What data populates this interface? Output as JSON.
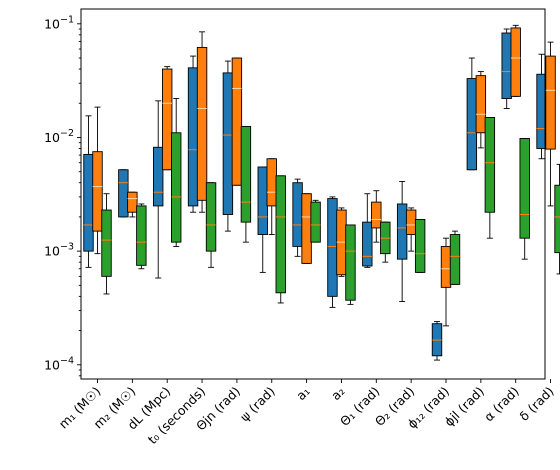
{
  "chart_data": {
    "type": "box",
    "y_scale": "log",
    "ylim": [
      7.5e-05,
      0.135
    ],
    "y_ticks": [
      {
        "value": 0.1,
        "base": "10",
        "exp": "−1"
      },
      {
        "value": 0.01,
        "base": "10",
        "exp": "−2"
      },
      {
        "value": 0.001,
        "base": "10",
        "exp": "−3"
      },
      {
        "value": 0.0001,
        "base": "10",
        "exp": "−4"
      }
    ],
    "categories": [
      {
        "label": "m₁ (M☉)"
      },
      {
        "label": "m₂ (M☉)"
      },
      {
        "label": "dL (Mpc)"
      },
      {
        "label": "t₀ (seconds)"
      },
      {
        "label": "Θjn (rad)"
      },
      {
        "label": "ψ (rad)"
      },
      {
        "label": "a₁"
      },
      {
        "label": "a₂"
      },
      {
        "label": "Θ₁ (rad)"
      },
      {
        "label": "Θ₂ (rad)"
      },
      {
        "label": "ϕ₁₂ (rad)"
      },
      {
        "label": "ϕjl (rad)"
      },
      {
        "label": "α (rad)"
      },
      {
        "label": "δ (rad)"
      }
    ],
    "series": [
      {
        "color": "#1f77b4",
        "boxes": [
          {
            "whislo": 0.00072,
            "q1": 0.001,
            "med": 0.0017,
            "q3": 0.0071,
            "whishi": 0.0155
          },
          {
            "whislo": 0.002,
            "q1": 0.002,
            "med": 0.004,
            "q3": 0.0052,
            "whishi": 0.0052
          },
          {
            "whislo": 0.00058,
            "q1": 0.0025,
            "med": 0.0033,
            "q3": 0.0082,
            "whishi": 0.021
          },
          {
            "whislo": 0.0022,
            "q1": 0.0025,
            "med": 0.0078,
            "q3": 0.041,
            "whishi": 0.052
          },
          {
            "whislo": 0.0015,
            "q1": 0.0021,
            "med": 0.0105,
            "q3": 0.037,
            "whishi": 0.047
          },
          {
            "whislo": 0.00065,
            "q1": 0.0014,
            "med": 0.002,
            "q3": 0.0055,
            "whishi": 0.0055
          },
          {
            "whislo": 0.0009,
            "q1": 0.0011,
            "med": 0.0017,
            "q3": 0.004,
            "whishi": 0.0043
          },
          {
            "whislo": 0.00032,
            "q1": 0.0004,
            "med": 0.0011,
            "q3": 0.0029,
            "whishi": 0.003
          },
          {
            "whislo": 0.00072,
            "q1": 0.00074,
            "med": 0.0009,
            "q3": 0.0018,
            "whishi": 0.0032
          },
          {
            "whislo": 0.00036,
            "q1": 0.00085,
            "med": 0.0016,
            "q3": 0.0026,
            "whishi": 0.0041
          },
          {
            "whislo": 0.00011,
            "q1": 0.00012,
            "med": 0.000165,
            "q3": 0.00023,
            "whishi": 0.00024
          },
          {
            "whislo": 0.0052,
            "q1": 0.0052,
            "med": 0.011,
            "q3": 0.033,
            "whishi": 0.05
          },
          {
            "whislo": 0.018,
            "q1": 0.022,
            "med": 0.038,
            "q3": 0.083,
            "whishi": 0.09
          },
          {
            "whislo": 0.0065,
            "q1": 0.008,
            "med": 0.012,
            "q3": 0.036,
            "whishi": 0.054
          }
        ]
      },
      {
        "color": "#ff7f0e",
        "boxes": [
          {
            "whislo": 0.00095,
            "q1": 0.0015,
            "med": 0.0037,
            "q3": 0.0075,
            "whishi": 0.0185
          },
          {
            "whislo": 0.002,
            "q1": 0.0022,
            "med": 0.0029,
            "q3": 0.0033,
            "whishi": 0.0033
          },
          {
            "whislo": 0.0052,
            "q1": 0.0052,
            "med": 0.02,
            "q3": 0.04,
            "whishi": 0.042
          },
          {
            "whislo": 0.0022,
            "q1": 0.0028,
            "med": 0.018,
            "q3": 0.062,
            "whishi": 0.085
          },
          {
            "whislo": 0.0038,
            "q1": 0.0038,
            "med": 0.027,
            "q3": 0.05,
            "whishi": 0.05
          },
          {
            "whislo": 0.0014,
            "q1": 0.0025,
            "med": 0.0033,
            "q3": 0.0065,
            "whishi": 0.0065
          },
          {
            "whislo": 0.00078,
            "q1": 0.00078,
            "med": 0.002,
            "q3": 0.0032,
            "whishi": 0.0032
          },
          {
            "whislo": 0.0006,
            "q1": 0.00062,
            "med": 0.0012,
            "q3": 0.0023,
            "whishi": 0.0024
          },
          {
            "whislo": 0.0012,
            "q1": 0.0016,
            "med": 0.0019,
            "q3": 0.0027,
            "whishi": 0.0034
          },
          {
            "whislo": 0.001,
            "q1": 0.0014,
            "med": 0.0017,
            "q3": 0.0023,
            "whishi": 0.0024
          },
          {
            "whislo": 0.00022,
            "q1": 0.00048,
            "med": 0.0007,
            "q3": 0.0011,
            "whishi": 0.0013
          },
          {
            "whislo": 0.0081,
            "q1": 0.011,
            "med": 0.016,
            "q3": 0.035,
            "whishi": 0.038
          },
          {
            "whislo": 0.023,
            "q1": 0.023,
            "med": 0.05,
            "q3": 0.092,
            "whishi": 0.097
          },
          {
            "whislo": 0.0025,
            "q1": 0.0079,
            "med": 0.026,
            "q3": 0.052,
            "whishi": 0.069
          }
        ]
      },
      {
        "color": "#2ca02c",
        "boxes": [
          {
            "whislo": 0.00042,
            "q1": 0.0006,
            "med": 0.00125,
            "q3": 0.0023,
            "whishi": 0.0032
          },
          {
            "whislo": 0.0007,
            "q1": 0.00075,
            "med": 0.0012,
            "q3": 0.0025,
            "whishi": 0.0026
          },
          {
            "whislo": 0.0011,
            "q1": 0.0012,
            "med": 0.003,
            "q3": 0.011,
            "whishi": 0.022
          },
          {
            "whislo": 0.00072,
            "q1": 0.001,
            "med": 0.0017,
            "q3": 0.004,
            "whishi": 0.004
          },
          {
            "whislo": 0.0012,
            "q1": 0.0018,
            "med": 0.0027,
            "q3": 0.0125,
            "whishi": 0.0125
          },
          {
            "whislo": 0.00035,
            "q1": 0.00043,
            "med": 0.002,
            "q3": 0.0046,
            "whishi": 0.0046
          },
          {
            "whislo": 0.0012,
            "q1": 0.0012,
            "med": 0.0017,
            "q3": 0.0027,
            "whishi": 0.0028
          },
          {
            "whislo": 0.00034,
            "q1": 0.00037,
            "med": 0.001,
            "q3": 0.0017,
            "whishi": 0.0017
          },
          {
            "whislo": 0.0008,
            "q1": 0.00095,
            "med": 0.0013,
            "q3": 0.0018,
            "whishi": 0.0018
          },
          {
            "whislo": 0.00065,
            "q1": 0.00065,
            "med": 0.00095,
            "q3": 0.0019,
            "whishi": 0.0019
          },
          {
            "whislo": 0.00051,
            "q1": 0.00051,
            "med": 0.0009,
            "q3": 0.0014,
            "whishi": 0.0015
          },
          {
            "whislo": 0.0013,
            "q1": 0.0022,
            "med": 0.006,
            "q3": 0.015,
            "whishi": 0.015
          },
          {
            "whislo": 0.00085,
            "q1": 0.0013,
            "med": 0.0021,
            "q3": 0.0098,
            "whishi": 0.0098
          },
          {
            "whislo": 0.00063,
            "q1": 0.00097,
            "med": 0.002,
            "q3": 0.0038,
            "whishi": 0.0058
          }
        ]
      }
    ],
    "median_colors": [
      "#ff7f0e",
      "#ffd6a8",
      "#ff7f0e"
    ],
    "grid": false,
    "legend": "none"
  }
}
